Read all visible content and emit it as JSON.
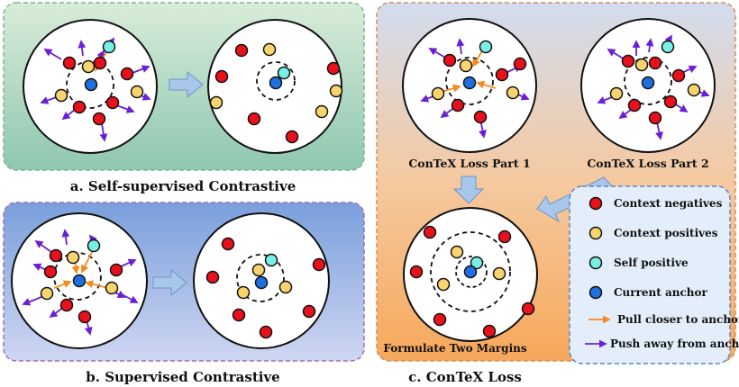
{
  "captions": {
    "panel_a": "a. Self-supervised Contrastive",
    "panel_b": "b. Supervised Contrastive",
    "panel_c": "c. ConTeX Loss"
  },
  "labels": {
    "part1": "ConTeX Loss Part 1",
    "part2": "ConTeX Loss Part 2",
    "margins": "Formulate Two Margins"
  },
  "legend": {
    "context_negatives": "Context negatives",
    "context_positives": "Context positives",
    "self_positive": "Self positive",
    "current_anchor": "Current anchor",
    "pull": "Pull closer to anchor",
    "push": "Push away from anchor"
  },
  "colors": {
    "negative": "#e8101a",
    "positive": "#f9d46e",
    "self_positive": "#78f0e6",
    "anchor": "#1f6fe0",
    "pull_arrow": "#f58a1f",
    "push_arrow": "#6a1fd6"
  }
}
